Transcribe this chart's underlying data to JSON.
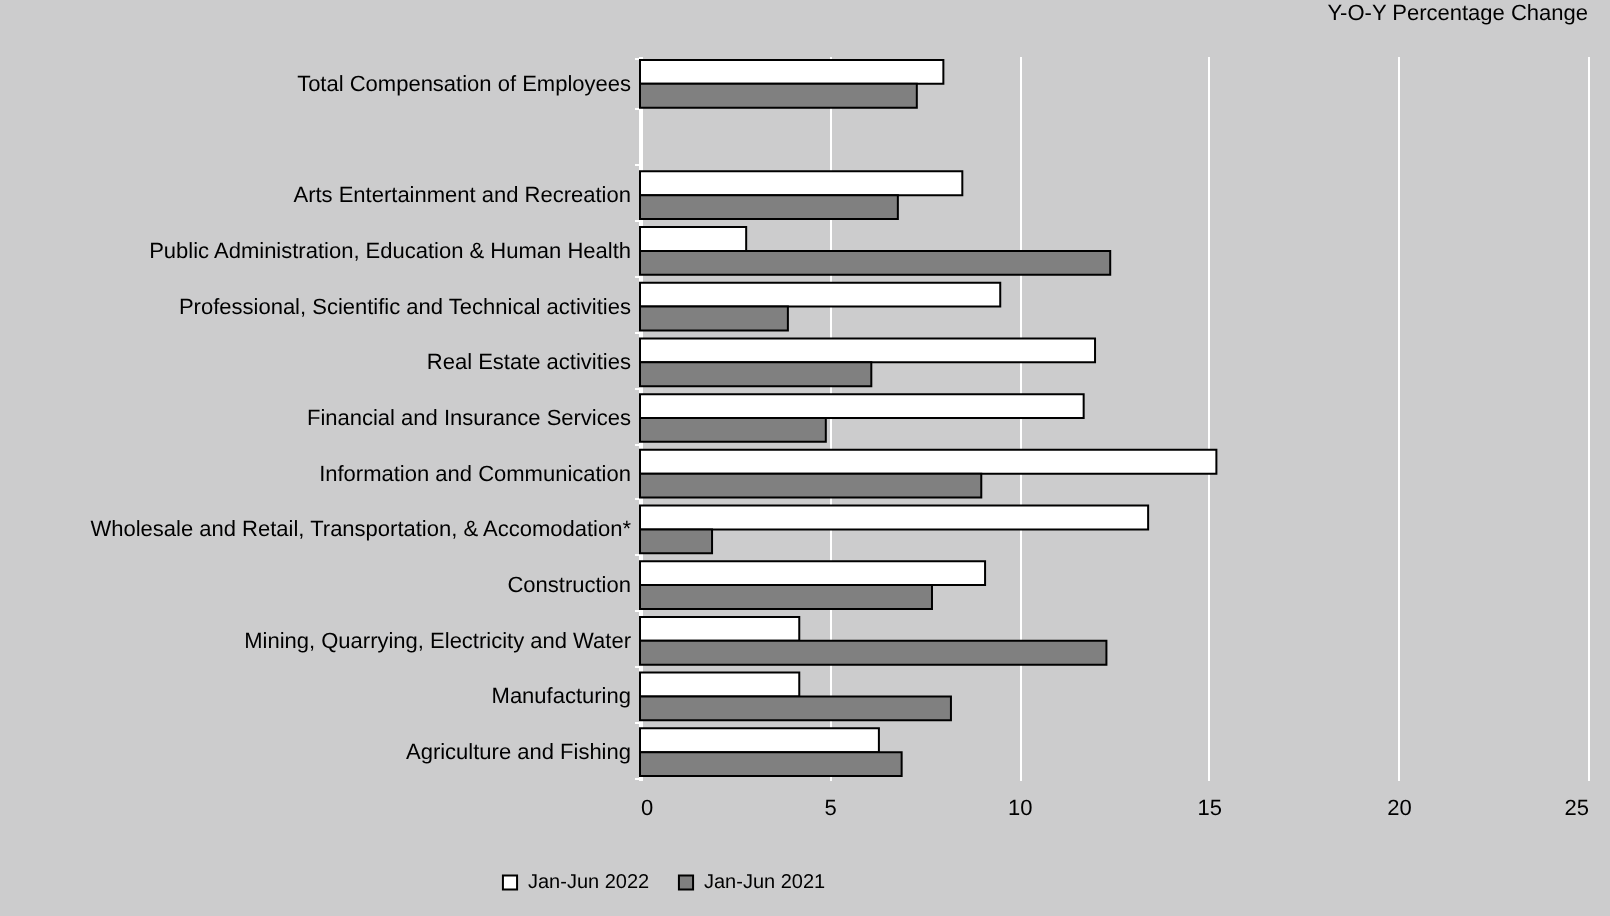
{
  "chart_data": {
    "type": "bar",
    "orientation": "horizontal",
    "title": "Y-O-Y Percentage Change",
    "categories": [
      "Total Compensation of Employees",
      null,
      "Arts Entertainment and Recreation",
      "Public Administration, Education & Human Health",
      "Professional, Scientific and Technical activities",
      "Real Estate activities",
      "Financial and Insurance Services",
      "Information and Communication",
      "Wholesale and Retail, Transportation, & Accomodation*",
      "Construction",
      "Mining, Quarrying, Electricity and Water",
      "Manufacturing",
      "Agriculture and Fishing"
    ],
    "series": [
      {
        "name": "Jan-Jun 2022",
        "color": "#ffffff",
        "values": [
          8.0,
          null,
          8.5,
          2.8,
          9.5,
          12.0,
          11.7,
          15.2,
          13.4,
          9.1,
          4.2,
          4.2,
          6.3
        ]
      },
      {
        "name": "Jan-Jun 2021",
        "color": "#808080",
        "values": [
          7.3,
          null,
          6.8,
          12.4,
          3.9,
          6.1,
          4.9,
          9.0,
          1.9,
          7.7,
          12.3,
          8.2,
          6.9
        ]
      }
    ],
    "xlim": [
      0,
      25
    ],
    "xticks": [
      0,
      5,
      10,
      15,
      20,
      25
    ],
    "grid": "x",
    "legend": "bottom"
  }
}
